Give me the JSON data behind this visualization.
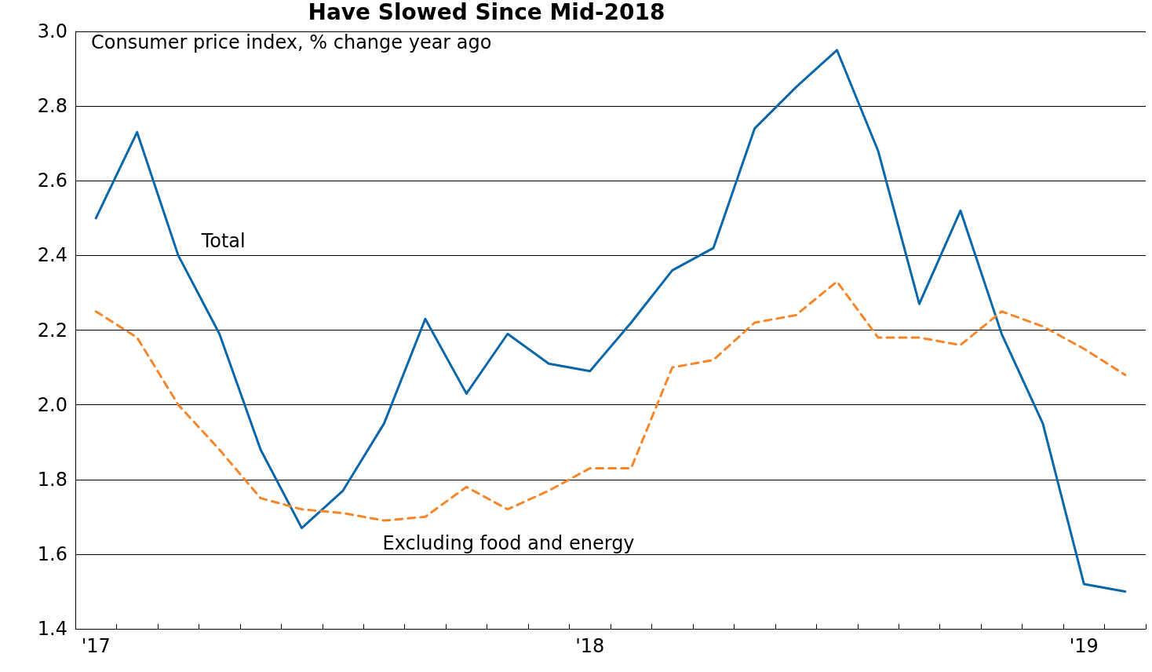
{
  "chart_data": {
    "type": "line",
    "title": "Have Slowed Since Mid-2018",
    "annotations": [
      "Consumer price index, % change year ago"
    ],
    "categories": [
      "'17",
      null,
      null,
      null,
      null,
      null,
      null,
      null,
      null,
      null,
      null,
      null,
      "'18",
      null,
      null,
      null,
      null,
      null,
      null,
      null,
      null,
      null,
      null,
      null,
      "'19",
      null
    ],
    "series": [
      {
        "name": "Total",
        "color": "#0a67aa",
        "line_style": "solid",
        "values": [
          2.5,
          2.73,
          2.4,
          2.19,
          1.88,
          1.67,
          1.77,
          1.95,
          2.23,
          2.03,
          2.19,
          2.11,
          2.09,
          2.22,
          2.36,
          2.42,
          2.74,
          2.85,
          2.95,
          2.68,
          2.27,
          2.52,
          2.19,
          1.95,
          1.52,
          1.5
        ]
      },
      {
        "name": "Excluding food and energy",
        "color": "#f5862a",
        "line_style": "dashed",
        "values": [
          2.25,
          2.18,
          2.0,
          1.88,
          1.75,
          1.72,
          1.71,
          1.69,
          1.7,
          1.78,
          1.72,
          1.77,
          1.83,
          1.83,
          2.1,
          2.12,
          2.22,
          2.24,
          2.33,
          2.18,
          2.18,
          2.16,
          2.25,
          2.21,
          2.15,
          2.08
        ]
      }
    ],
    "ylim": [
      1.4,
      3.0
    ],
    "yticks": [
      1.4,
      1.6,
      1.8,
      {
        "value": 2.0,
        "label": "2.0"
      },
      2.2,
      2.4,
      2.6,
      2.8,
      {
        "value": 3.0,
        "label": "3.0"
      }
    ],
    "grid": "y",
    "marker": "none",
    "legend": false
  }
}
